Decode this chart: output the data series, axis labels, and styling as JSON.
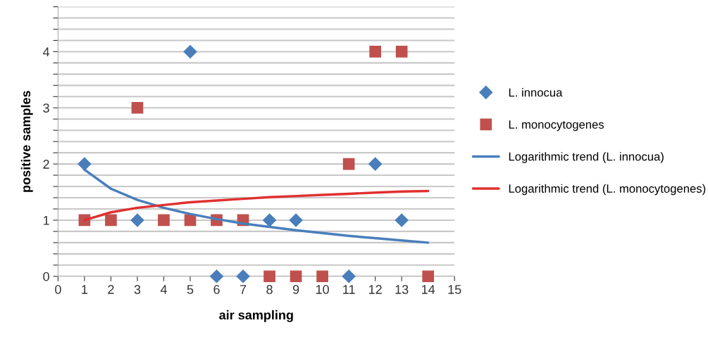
{
  "chart_data": {
    "type": "scatter",
    "xlabel": "air sampling",
    "ylabel": "positive samples",
    "xlim": [
      0,
      15
    ],
    "xticks": [
      0,
      1,
      2,
      3,
      4,
      5,
      6,
      7,
      8,
      9,
      10,
      11,
      12,
      13,
      14,
      15
    ],
    "ylim": [
      0,
      4.8
    ],
    "yticks": [
      0,
      {
        "value": 0.2,
        "label": null
      },
      {
        "value": 0.4,
        "label": null
      },
      {
        "value": 0.6,
        "label": null
      },
      {
        "value": 0.8,
        "label": null
      },
      1,
      {
        "value": 1.2,
        "label": null
      },
      {
        "value": 1.4,
        "label": null
      },
      {
        "value": 1.6,
        "label": null
      },
      {
        "value": 1.8,
        "label": null
      },
      2,
      {
        "value": 2.2,
        "label": null
      },
      {
        "value": 2.4,
        "label": null
      },
      {
        "value": 2.6,
        "label": null
      },
      {
        "value": 2.8,
        "label": null
      },
      3,
      {
        "value": 3.2,
        "label": null
      },
      {
        "value": 3.4,
        "label": null
      },
      {
        "value": 3.6,
        "label": null
      },
      {
        "value": 3.8,
        "label": null
      },
      4,
      {
        "value": 4.2,
        "label": null
      },
      {
        "value": 4.4,
        "label": null
      },
      {
        "value": 4.6,
        "label": null
      },
      {
        "value": 4.8,
        "label": null
      }
    ],
    "grid": "y",
    "legend": "right",
    "series": [
      {
        "name": "L. innocua",
        "color": "#4a7ebb",
        "marker": "diamond",
        "x": [
          1,
          3,
          5,
          6,
          7,
          8,
          9,
          11,
          12,
          13
        ],
        "values": [
          2,
          1,
          4,
          0,
          0,
          1,
          1,
          0,
          2,
          1
        ]
      },
      {
        "name": "L. monocytogenes",
        "color": "#c0504d",
        "marker": "square",
        "x": [
          1,
          2,
          3,
          4,
          5,
          6,
          7,
          8,
          9,
          10,
          11,
          12,
          13,
          14
        ],
        "values": [
          1,
          1,
          3,
          1,
          1,
          1,
          1,
          0,
          0,
          0,
          2,
          4,
          4,
          0
        ]
      },
      {
        "name": "Logarithmic trend (L. innocua)",
        "type": "line",
        "color": "#4a7ebb",
        "marker": "none",
        "x": [
          1,
          2,
          3,
          4,
          5,
          6,
          7,
          8,
          9,
          10,
          11,
          12,
          13,
          14
        ],
        "values": [
          1.9,
          1.56,
          1.36,
          1.22,
          1.11,
          1.02,
          0.94,
          0.88,
          0.82,
          0.77,
          0.72,
          0.68,
          0.64,
          0.6
        ]
      },
      {
        "name": "Logarithmic trend (L. monocytogenes)",
        "type": "line",
        "color": "#e03030",
        "marker": "none",
        "x": [
          1,
          2,
          3,
          4,
          5,
          6,
          7,
          8,
          9,
          10,
          11,
          12,
          13,
          14
        ],
        "values": [
          1.0,
          1.14,
          1.22,
          1.27,
          1.32,
          1.35,
          1.38,
          1.41,
          1.43,
          1.45,
          1.47,
          1.49,
          1.51,
          1.52
        ]
      }
    ]
  }
}
